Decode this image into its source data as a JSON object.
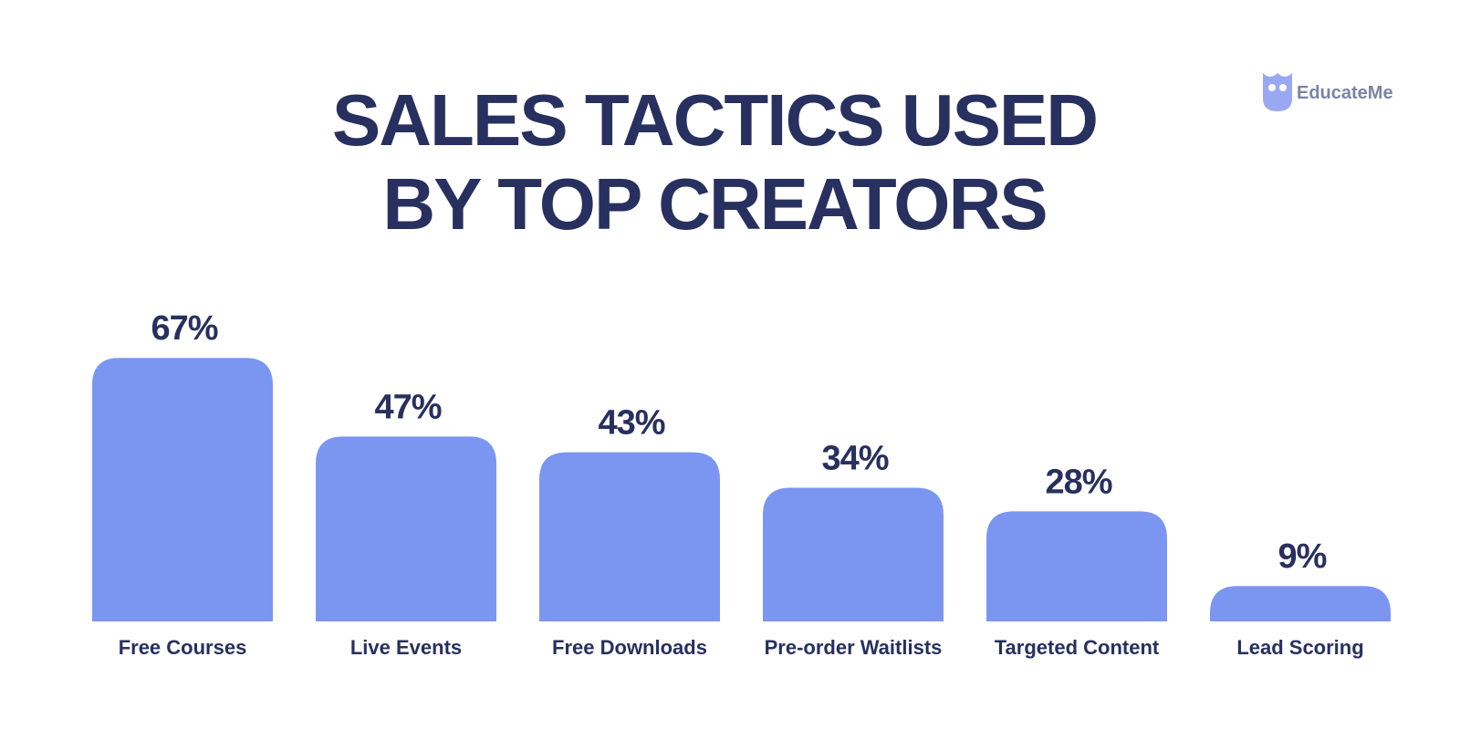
{
  "brand": "EducateMe",
  "chart_data": {
    "type": "bar",
    "title": "SALES TACTICS USED BY TOP CREATORS",
    "categories": [
      "Free Courses",
      "Live Events",
      "Free Downloads",
      "Pre-order Waitlists",
      "Targeted Content",
      "Lead Scoring"
    ],
    "values": [
      67,
      47,
      43,
      34,
      28,
      9
    ],
    "value_labels": [
      "67%",
      "47%",
      "43%",
      "34%",
      "28%",
      "9%"
    ],
    "color": "#7b96f0"
  }
}
